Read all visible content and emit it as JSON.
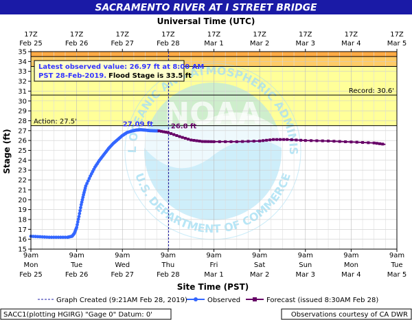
{
  "chart_data": {
    "type": "line",
    "title": "SACRAMENTO RIVER AT I STREET BRIDGE",
    "top_axis_title": "Universal Time (UTC)",
    "xlabel": "Site Time (PST)",
    "ylabel": "Stage (ft)",
    "ylim": [
      15,
      35
    ],
    "y_ticks": [
      15,
      16,
      17,
      18,
      19,
      20,
      21,
      22,
      23,
      24,
      25,
      26,
      27,
      28,
      29,
      30,
      31,
      32,
      33,
      34,
      35
    ],
    "top_ticks": [
      {
        "t": "17Z",
        "d": "Feb 25"
      },
      {
        "t": "17Z",
        "d": "Feb 26"
      },
      {
        "t": "17Z",
        "d": "Feb 27"
      },
      {
        "t": "17Z",
        "d": "Feb 28"
      },
      {
        "t": "17Z",
        "d": "Mar 1"
      },
      {
        "t": "17Z",
        "d": "Mar 2"
      },
      {
        "t": "17Z",
        "d": "Mar 3"
      },
      {
        "t": "17Z",
        "d": "Mar 4"
      },
      {
        "t": "17Z",
        "d": "Mar 5"
      }
    ],
    "bottom_ticks": [
      {
        "t": "9am",
        "w": "Mon",
        "d": "Feb 25"
      },
      {
        "t": "9am",
        "w": "Tue",
        "d": "Feb 26"
      },
      {
        "t": "9am",
        "w": "Wed",
        "d": "Feb 27"
      },
      {
        "t": "9am",
        "w": "Thu",
        "d": "Feb 28"
      },
      {
        "t": "9am",
        "w": "Fri",
        "d": "Mar 1"
      },
      {
        "t": "9am",
        "w": "Sat",
        "d": "Mar 2"
      },
      {
        "t": "9am",
        "w": "Sun",
        "d": "Mar 3"
      },
      {
        "t": "9am",
        "w": "Mon",
        "d": "Mar 4"
      },
      {
        "t": "9am",
        "w": "Tue",
        "d": "Mar 5"
      }
    ],
    "thresholds": {
      "action": 27.5,
      "flood": 33.5,
      "major": 34.5,
      "record": 30.6,
      "action_label": "Action: 27.5'",
      "record_label": "Record: 30.6'"
    },
    "graph_created_day": 3.01,
    "series": [
      {
        "name": "Observed",
        "color": "#3366ff",
        "points": [
          [
            0.0,
            16.3
          ],
          [
            0.2,
            16.25
          ],
          [
            0.4,
            16.2
          ],
          [
            0.6,
            16.2
          ],
          [
            0.8,
            16.2
          ],
          [
            0.9,
            16.3
          ],
          [
            0.95,
            16.6
          ],
          [
            1.0,
            17.2
          ],
          [
            1.05,
            18.3
          ],
          [
            1.1,
            19.5
          ],
          [
            1.15,
            20.5
          ],
          [
            1.2,
            21.4
          ],
          [
            1.3,
            22.4
          ],
          [
            1.4,
            23.3
          ],
          [
            1.5,
            24.0
          ],
          [
            1.6,
            24.6
          ],
          [
            1.7,
            25.2
          ],
          [
            1.8,
            25.7
          ],
          [
            1.9,
            26.1
          ],
          [
            2.0,
            26.5
          ],
          [
            2.1,
            26.8
          ],
          [
            2.2,
            26.95
          ],
          [
            2.3,
            27.05
          ],
          [
            2.4,
            27.09
          ],
          [
            2.5,
            27.05
          ],
          [
            2.6,
            27.0
          ],
          [
            2.7,
            26.98
          ],
          [
            2.8,
            26.97
          ]
        ],
        "peak_label": "27.09 ft",
        "peak_day": 2.4
      },
      {
        "name": "Forecast (issued 8:30AM Feb 28)",
        "color": "#660066",
        "points": [
          [
            2.8,
            26.97
          ],
          [
            3.0,
            26.8
          ],
          [
            3.25,
            26.4
          ],
          [
            3.5,
            26.05
          ],
          [
            3.75,
            25.9
          ],
          [
            4.0,
            25.88
          ],
          [
            4.5,
            25.88
          ],
          [
            5.0,
            25.95
          ],
          [
            5.3,
            26.1
          ],
          [
            5.6,
            26.1
          ],
          [
            6.0,
            26.0
          ],
          [
            6.5,
            25.95
          ],
          [
            7.0,
            25.85
          ],
          [
            7.5,
            25.75
          ],
          [
            7.75,
            25.6
          ]
        ],
        "label": "26.8 ft",
        "label_day": 3.0
      }
    ],
    "info_box": {
      "line1": "Latest observed value: 26.97 ft at 8:00 AM",
      "line2a": "PST 28-Feb-2019.",
      "line2b": "Flood Stage is 33.5 ft"
    },
    "legend": {
      "created": "Graph Created (9:21AM Feb 28, 2019)",
      "observed": "Observed",
      "forecast": "Forecast (issued 8:30AM Feb 28)"
    },
    "footer_left": "SACC1(plotting HGIRG) \"Gage 0\" Datum: 0'",
    "footer_right": "Observations courtesy of CA DWR",
    "watermark": {
      "logo_text": "NOAA",
      "ring_top": "NATIONAL OCEANIC AND ATMOSPHERIC ADMINISTRATION",
      "ring_bottom": "U.S. DEPARTMENT OF COMMERCE"
    },
    "colors": {
      "title_bar": "#1a1aa6",
      "action_band": "#ffff99",
      "flood_band": "#ffcc66",
      "major_band": "#ffaa44",
      "watermark": "#a6e0f5"
    }
  }
}
